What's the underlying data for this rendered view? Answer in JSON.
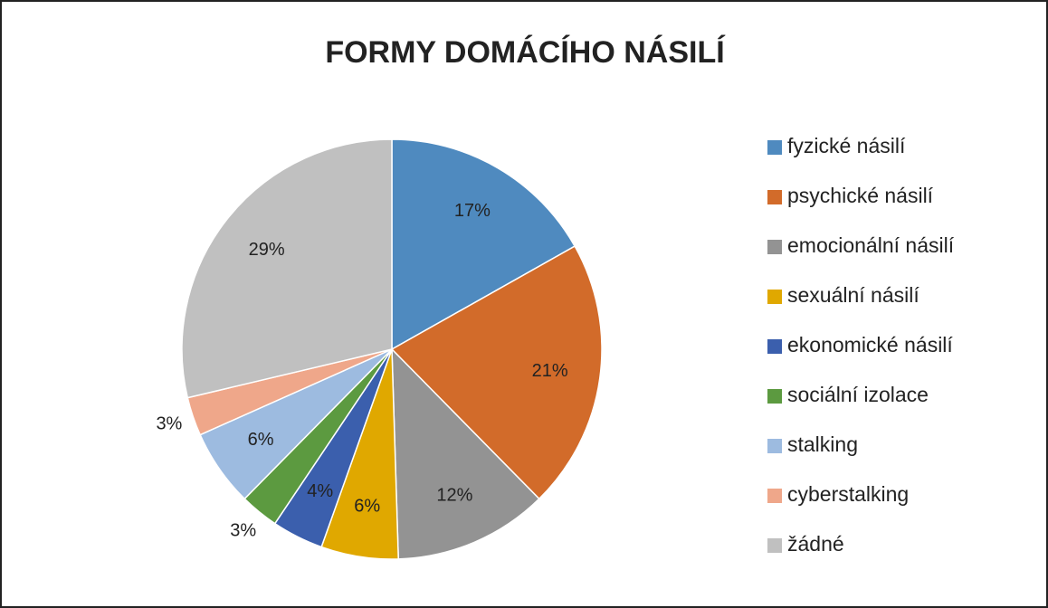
{
  "chart_data": {
    "type": "pie",
    "title": "FORMY DOMÁCÍHO NÁSILÍ",
    "categories": [
      "fyzické násilí",
      "psychické násilí",
      "emocionální násilí",
      "sexuální násilí",
      "ekonomické násilí",
      "sociální izolace",
      "stalking",
      "cyberstalking",
      "žádné"
    ],
    "values": [
      17,
      21,
      12,
      6,
      4,
      3,
      6,
      3,
      29
    ],
    "value_labels": [
      "17%",
      "21%",
      "12%",
      "6%",
      "4%",
      "3%",
      "6%",
      "3%",
      "29%"
    ],
    "colors": [
      "#4f8abf",
      "#d26b2a",
      "#939393",
      "#e0a800",
      "#3b5fad",
      "#5c9a40",
      "#9dbbe0",
      "#efa78a",
      "#c0c0c0"
    ],
    "legend": "right"
  }
}
